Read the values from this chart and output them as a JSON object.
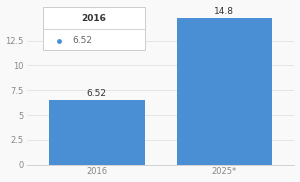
{
  "categories": [
    "2016",
    "2025*"
  ],
  "values": [
    6.52,
    14.8
  ],
  "bar_color": "#4a8fd4",
  "bar_labels": [
    "6.52",
    "14.8"
  ],
  "ylim": [
    0,
    16.0
  ],
  "yticks": [
    0,
    2.5,
    5,
    7.5,
    10,
    12.5
  ],
  "legend_year": "2016",
  "legend_value": "6.52",
  "background_color": "#f9f9f9",
  "bar_label_fontsize": 6.5,
  "tick_fontsize": 6,
  "legend_fontsize": 6.5
}
